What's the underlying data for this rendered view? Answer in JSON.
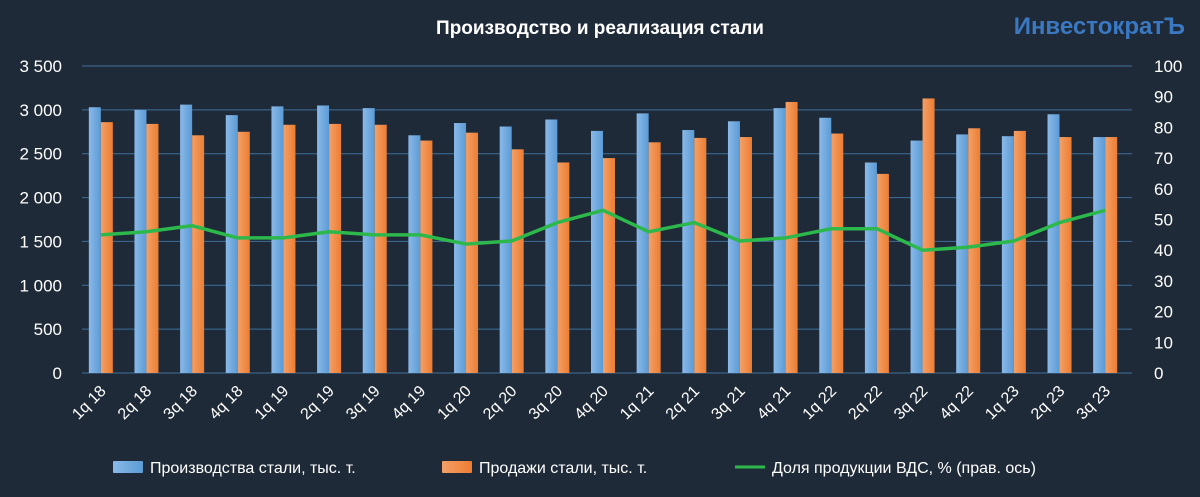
{
  "brand": "ИнвестократЪ",
  "colors": {
    "background": "#1f2a38",
    "grid": "#3f6f9a",
    "production": "#5b9bd5",
    "sales": "#ed7d31",
    "share": "#2db84b"
  },
  "chart_data": {
    "type": "bar",
    "title": "Производство и реализация стали",
    "categories": [
      "1q 18",
      "2q 18",
      "3q 18",
      "4q 18",
      "1q 19",
      "2q 19",
      "3q 19",
      "4q 19",
      "1q 20",
      "2q 20",
      "3q 20",
      "4q 20",
      "1q 21",
      "2q 21",
      "3q 21",
      "4q 21",
      "1q 22",
      "2q 22",
      "3q 22",
      "4q 22",
      "1q 23",
      "2q 23",
      "3q 23"
    ],
    "ylim": [
      0,
      3500
    ],
    "y_ticks": [
      "0",
      "500",
      "1 000",
      "1 500",
      "2 000",
      "2 500",
      "3 000",
      "3 500"
    ],
    "y2lim": [
      0,
      100
    ],
    "y2_ticks": [
      "0",
      "10",
      "20",
      "30",
      "40",
      "50",
      "60",
      "70",
      "80",
      "90",
      "100"
    ],
    "grid": true,
    "legend_position": "bottom",
    "series": [
      {
        "name": "Производства стали, тыс. т.",
        "type": "bar",
        "axis": "left",
        "values": [
          3030,
          3000,
          3060,
          2940,
          3040,
          3050,
          3020,
          2710,
          2850,
          2810,
          2890,
          2760,
          2960,
          2770,
          2870,
          3020,
          2910,
          2400,
          2650,
          2720,
          2700,
          2950,
          2690
        ]
      },
      {
        "name": "Продажи стали, тыс. т.",
        "type": "bar",
        "axis": "left",
        "values": [
          2860,
          2840,
          2710,
          2750,
          2830,
          2840,
          2830,
          2650,
          2740,
          2550,
          2400,
          2450,
          2630,
          2680,
          2690,
          3090,
          2730,
          2270,
          3130,
          2790,
          2760,
          2690,
          2690
        ]
      },
      {
        "name": "Доля продукции ВДС, % (прав. ось)",
        "type": "line",
        "axis": "right",
        "values": [
          45,
          46,
          48,
          44,
          44,
          46,
          45,
          45,
          42,
          43,
          49,
          53,
          46,
          49,
          43,
          44,
          47,
          47,
          40,
          41,
          43,
          49,
          53
        ]
      }
    ]
  }
}
